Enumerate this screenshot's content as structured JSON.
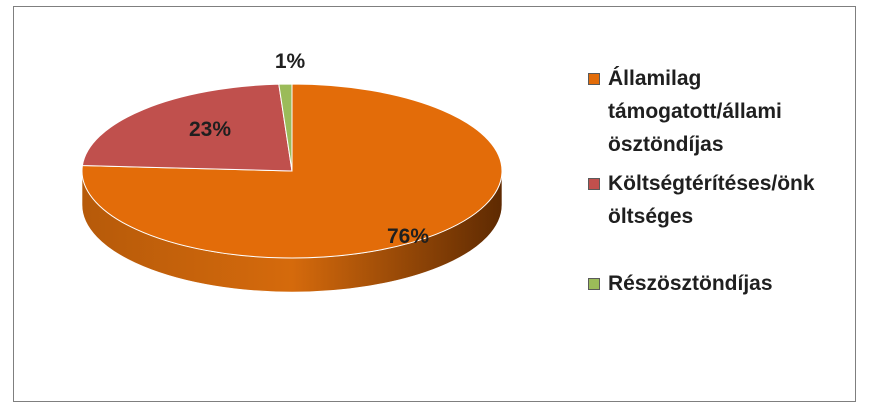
{
  "chart_data": {
    "type": "pie",
    "style": "3d",
    "slices": [
      {
        "label": "Államilag támogatott/állami ösztöndíjas",
        "value": 76,
        "display": "76%",
        "color": "#e36c09",
        "side_color": "#a84d04"
      },
      {
        "label": "Költségtérítéses/önköltséges",
        "value": 23,
        "display": "23%",
        "color": "#c0504d",
        "side_color": "#8c3533"
      },
      {
        "label": "Részösztöndíjas",
        "value": 1,
        "display": "1%",
        "color": "#9bbb59",
        "side_color": "#6f8a3b"
      }
    ],
    "legend_position": "right"
  },
  "legend": {
    "items": [
      {
        "lines": [
          "Államilag",
          "támogatott/állami",
          "ösztöndíjas"
        ],
        "color": "#e36c09"
      },
      {
        "lines": [
          "Költségtérítéses/önk",
          "öltséges"
        ],
        "color": "#c0504d"
      },
      {
        "lines": [
          "Részösztöndíjas"
        ],
        "color": "#9bbb59"
      }
    ]
  }
}
